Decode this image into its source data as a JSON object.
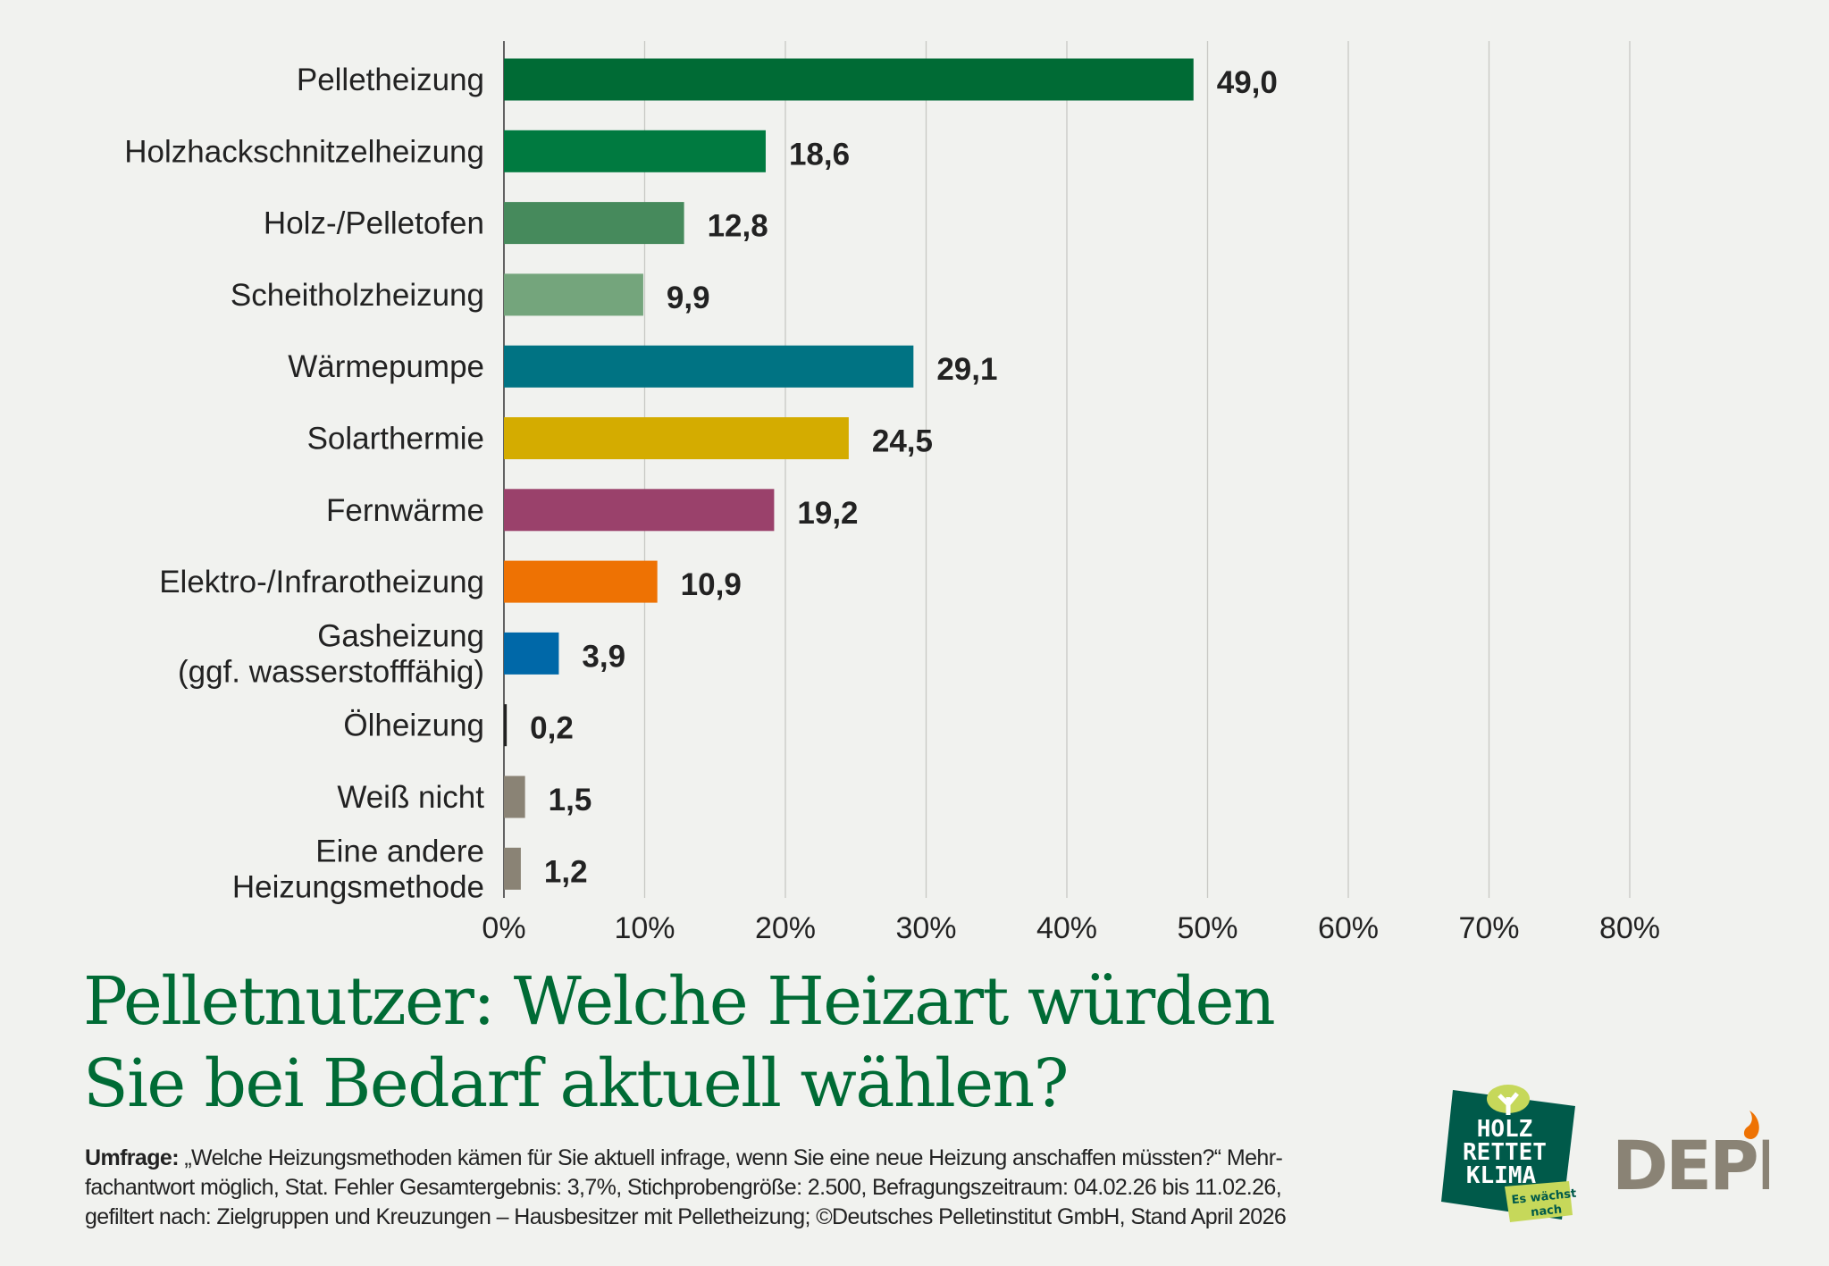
{
  "title": [
    "Pelletnutzer: Welche Heizart würden",
    "Sie bei Bedarf aktuell wählen?"
  ],
  "footnote": {
    "label": "Umfrage:",
    "lines": [
      "„Welche Heizungsmethoden kämen für Sie aktuell infrage, wenn Sie eine neue Heizung anschaffen müssten?“ Mehr-",
      "fachantwort möglich, Stat. Fehler Gesamtergebnis: 3,7%, Stichprobengröße: 2.500, Befragungszeitraum: 04.02.26 bis 11.02.26,",
      "gefiltert nach: Zielgruppen und Kreuzungen – Hausbesitzer mit Pelletheizung; ©Deutsches Pelletinstitut GmbH, Stand April 2026"
    ]
  },
  "logos": {
    "holz_rettet_klima": [
      "HOLZ",
      "RETTET",
      "KLIMA",
      "Es wächst",
      "nach"
    ],
    "depi": "DEPI"
  },
  "chart_data": {
    "type": "bar",
    "orientation": "horizontal",
    "categories": [
      "Pelletheizung",
      "Holzhackschnitzelheizung",
      "Holz-/Pelletofen",
      "Scheitholzheizung",
      "Wärmepumpe",
      "Solarthermie",
      "Fernwärme",
      "Elektro-/Infrarotheizung",
      "Gasheizung\n(ggf. wasserstofffähig)",
      "Ölheizung",
      "Weiß nicht",
      "Eine andere\nHeizungsmethode"
    ],
    "values": [
      49.0,
      18.6,
      12.8,
      9.9,
      29.1,
      24.5,
      19.2,
      10.9,
      3.9,
      0.2,
      1.5,
      1.2
    ],
    "value_labels": [
      "49,0",
      "18,6",
      "12,8",
      "9,9",
      "29,1",
      "24,5",
      "19,2",
      "10,9",
      "3,9",
      "0,2",
      "1,5",
      "1,2"
    ],
    "colors": [
      "#006b35",
      "#007a40",
      "#468a5c",
      "#74a57c",
      "#007383",
      "#d4ac00",
      "#9a416b",
      "#ee7203",
      "#0068a8",
      "#222222",
      "#8a8375",
      "#8a8375"
    ],
    "xlim": [
      0,
      80
    ],
    "xticks": [
      0,
      10,
      20,
      30,
      40,
      50,
      60,
      70,
      80
    ],
    "xtick_labels": [
      "0%",
      "10%",
      "20%",
      "30%",
      "40%",
      "50%",
      "60%",
      "70%",
      "80%"
    ],
    "grid": true,
    "xlabel": "",
    "ylabel": ""
  }
}
